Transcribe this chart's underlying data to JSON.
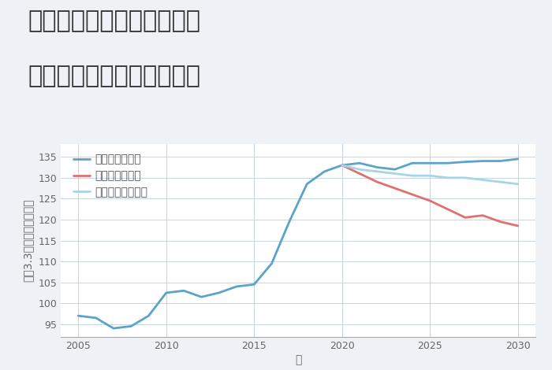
{
  "title_line1": "兵庫県姫路市飾磨区三宅の",
  "title_line2": "中古マンションの価格推移",
  "xlabel": "年",
  "ylabel": "坪（3.3㎡）単価（万円）",
  "background_color": "#eef2f7",
  "plot_background_color": "#ffffff",
  "grid_color": "#c5d5e5",
  "ylim": [
    92,
    138
  ],
  "yticks": [
    95,
    100,
    105,
    110,
    115,
    120,
    125,
    130,
    135
  ],
  "xticks": [
    2005,
    2010,
    2015,
    2020,
    2025,
    2030
  ],
  "scenarios": {
    "good": {
      "label": "グッドシナリオ",
      "color": "#5ba3c9",
      "linewidth": 2.0,
      "x": [
        2005,
        2006,
        2007,
        2008,
        2009,
        2010,
        2011,
        2012,
        2013,
        2014,
        2015,
        2016,
        2017,
        2018,
        2019,
        2020,
        2021,
        2022,
        2023,
        2024,
        2025,
        2026,
        2027,
        2028,
        2029,
        2030
      ],
      "y": [
        97.0,
        96.5,
        94.0,
        94.5,
        97.0,
        102.5,
        103.0,
        101.5,
        102.5,
        104.0,
        104.5,
        109.5,
        119.5,
        128.5,
        131.5,
        133.0,
        133.5,
        132.5,
        132.0,
        133.5,
        133.5,
        133.5,
        133.8,
        134.0,
        134.0,
        134.5
      ]
    },
    "bad": {
      "label": "バッドシナリオ",
      "color": "#e07070",
      "linewidth": 2.0,
      "x": [
        2020,
        2021,
        2022,
        2023,
        2024,
        2025,
        2026,
        2027,
        2028,
        2029,
        2030
      ],
      "y": [
        133.0,
        131.0,
        129.0,
        127.5,
        126.0,
        124.5,
        122.5,
        120.5,
        121.0,
        119.5,
        118.5
      ]
    },
    "normal": {
      "label": "ノーマルシナリオ",
      "color": "#a8d4e6",
      "linewidth": 2.0,
      "x": [
        2020,
        2021,
        2022,
        2023,
        2024,
        2025,
        2026,
        2027,
        2028,
        2029,
        2030
      ],
      "y": [
        133.0,
        132.0,
        131.5,
        131.0,
        130.5,
        130.5,
        130.0,
        130.0,
        129.5,
        129.0,
        128.5
      ]
    }
  },
  "title_fontsize": 22,
  "axis_fontsize": 10,
  "tick_fontsize": 9,
  "legend_fontsize": 10
}
